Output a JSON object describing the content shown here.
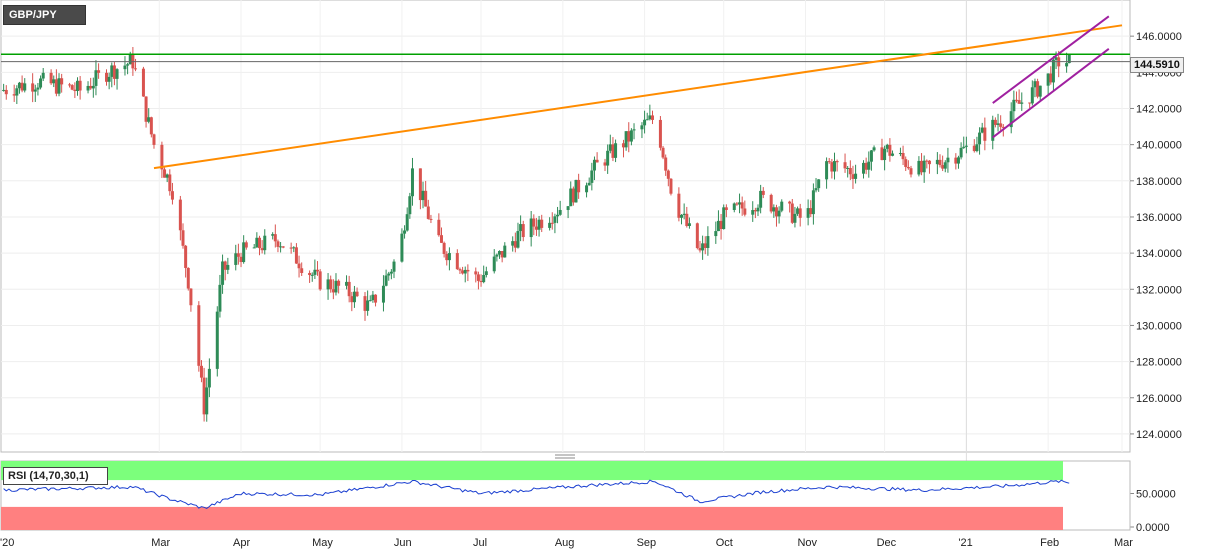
{
  "symbol": "GBP/JPY",
  "last_price": "144.5910",
  "rsi_label": "RSI (14,70,30,1)",
  "colors": {
    "bull": "#2e8b57",
    "bear": "#d9534f",
    "trendline": "#ff8c00",
    "channel": "#a020a0",
    "resistance": "#00a000",
    "rsi_line": "#1a3fd0",
    "overbought_zone": "#7cff7c",
    "oversold_zone": "#ff8080"
  },
  "chart_data": [
    {
      "type": "candlestick",
      "title": "GBP/JPY",
      "x_tick_labels": [
        "'20",
        "Mar",
        "Apr",
        "May",
        "Jun",
        "Jul",
        "Aug",
        "Sep",
        "Oct",
        "Nov",
        "Dec",
        "'21",
        "Feb",
        "Mar"
      ],
      "y_tick_labels": [
        "124.0000",
        "126.0000",
        "128.0000",
        "130.0000",
        "132.0000",
        "134.0000",
        "136.0000",
        "138.0000",
        "140.0000",
        "142.0000",
        "144.0000",
        "146.0000"
      ],
      "ylim": [
        123,
        148
      ],
      "resistance_level": 145.0,
      "last_price_line": 144.591,
      "trendline": {
        "from": {
          "x": "2020-02-28",
          "y": 138.7
        },
        "to": {
          "x": "2021-03-01",
          "y": 146.6
        }
      },
      "channel": {
        "upper": {
          "from": {
            "x": "2021-01-11",
            "y": 142.3
          },
          "to": {
            "x": "2021-02-24",
            "y": 147.1
          }
        },
        "lower": {
          "from": {
            "x": "2021-01-11",
            "y": 140.4
          },
          "to": {
            "x": "2021-02-24",
            "y": 145.3
          }
        }
      },
      "close_path": [
        {
          "x": "2020-01-01",
          "y": 143.0
        },
        {
          "x": "2020-01-15",
          "y": 143.5
        },
        {
          "x": "2020-01-31",
          "y": 143.0
        },
        {
          "x": "2020-02-10",
          "y": 144.0
        },
        {
          "x": "2020-02-20",
          "y": 144.6
        },
        {
          "x": "2020-02-28",
          "y": 140.0
        },
        {
          "x": "2020-03-06",
          "y": 137.5
        },
        {
          "x": "2020-03-12",
          "y": 132.5
        },
        {
          "x": "2020-03-18",
          "y": 125.5
        },
        {
          "x": "2020-03-25",
          "y": 133.0
        },
        {
          "x": "2020-04-01",
          "y": 134.0
        },
        {
          "x": "2020-04-15",
          "y": 134.8
        },
        {
          "x": "2020-04-30",
          "y": 132.5
        },
        {
          "x": "2020-05-10",
          "y": 132.0
        },
        {
          "x": "2020-05-20",
          "y": 131.0
        },
        {
          "x": "2020-05-31",
          "y": 134.0
        },
        {
          "x": "2020-06-05",
          "y": 138.5
        },
        {
          "x": "2020-06-15",
          "y": 134.5
        },
        {
          "x": "2020-06-30",
          "y": 132.5
        },
        {
          "x": "2020-07-15",
          "y": 135.0
        },
        {
          "x": "2020-07-31",
          "y": 136.5
        },
        {
          "x": "2020-08-15",
          "y": 139.0
        },
        {
          "x": "2020-08-31",
          "y": 141.0
        },
        {
          "x": "2020-09-05",
          "y": 141.5
        },
        {
          "x": "2020-09-12",
          "y": 137.0
        },
        {
          "x": "2020-09-22",
          "y": 134.0
        },
        {
          "x": "2020-10-01",
          "y": 136.0
        },
        {
          "x": "2020-10-15",
          "y": 137.0
        },
        {
          "x": "2020-11-01",
          "y": 135.8
        },
        {
          "x": "2020-11-09",
          "y": 139.0
        },
        {
          "x": "2020-11-20",
          "y": 138.5
        },
        {
          "x": "2020-12-01",
          "y": 139.8
        },
        {
          "x": "2020-12-15",
          "y": 138.5
        },
        {
          "x": "2021-01-01",
          "y": 139.8
        },
        {
          "x": "2021-01-15",
          "y": 141.5
        },
        {
          "x": "2021-01-31",
          "y": 143.5
        },
        {
          "x": "2021-02-05",
          "y": 144.6
        },
        {
          "x": "2021-02-09",
          "y": 144.59
        }
      ]
    },
    {
      "type": "line",
      "title": "RSI (14,70,30,1)",
      "y_tick_labels": [
        "0.0000",
        "50.0000"
      ],
      "ylim": [
        0,
        100
      ],
      "overbought": 70,
      "oversold": 30,
      "rsi_path": [
        {
          "x": "2020-01-01",
          "y": 55
        },
        {
          "x": "2020-02-01",
          "y": 58
        },
        {
          "x": "2020-02-20",
          "y": 60
        },
        {
          "x": "2020-03-05",
          "y": 42
        },
        {
          "x": "2020-03-18",
          "y": 28
        },
        {
          "x": "2020-04-01",
          "y": 50
        },
        {
          "x": "2020-05-01",
          "y": 48
        },
        {
          "x": "2020-06-05",
          "y": 68
        },
        {
          "x": "2020-07-01",
          "y": 50
        },
        {
          "x": "2020-08-10",
          "y": 62
        },
        {
          "x": "2020-09-05",
          "y": 68
        },
        {
          "x": "2020-09-22",
          "y": 38
        },
        {
          "x": "2020-10-15",
          "y": 52
        },
        {
          "x": "2020-11-10",
          "y": 60
        },
        {
          "x": "2020-12-15",
          "y": 55
        },
        {
          "x": "2021-01-15",
          "y": 61
        },
        {
          "x": "2021-02-05",
          "y": 68
        },
        {
          "x": "2021-02-09",
          "y": 66
        }
      ]
    }
  ]
}
